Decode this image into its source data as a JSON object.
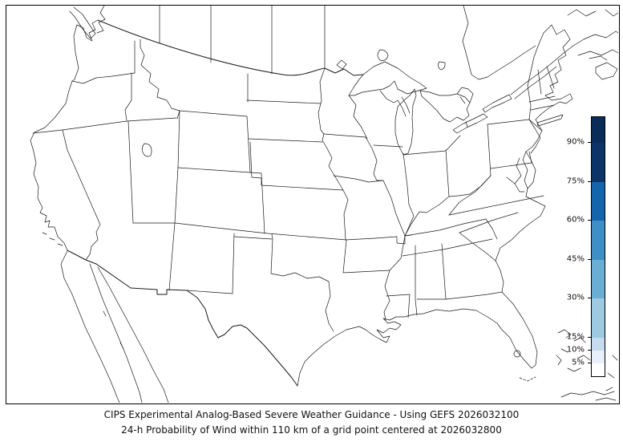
{
  "figure": {
    "background": "#ffffff",
    "frame_border_color": "#000000",
    "map_line_color": "#1a1a1a"
  },
  "map": {
    "region": "Contiguous United States with state boundaries, southern Canada, northern Mexico, Great Lakes and coastal islands",
    "fill": "#ffffff",
    "shaded_probability_areas": "none visible (all below 5%)"
  },
  "colorbar": {
    "orientation": "vertical",
    "unit": "%",
    "range": [
      0,
      100
    ],
    "ticks": [
      {
        "label": "90%",
        "value": 90
      },
      {
        "label": "75%",
        "value": 75
      },
      {
        "label": "60%",
        "value": 60
      },
      {
        "label": "45%",
        "value": 45
      },
      {
        "label": "30%",
        "value": 30
      },
      {
        "label": "15%",
        "value": 15
      },
      {
        "label": "10%",
        "value": 10
      },
      {
        "label": "5%",
        "value": 5
      }
    ],
    "segments": [
      {
        "from": 90,
        "to": 100,
        "color": "#0a2c59"
      },
      {
        "from": 75,
        "to": 90,
        "color": "#0d3468"
      },
      {
        "from": 60,
        "to": 75,
        "color": "#1565ac"
      },
      {
        "from": 45,
        "to": 60,
        "color": "#3f8ec5"
      },
      {
        "from": 30,
        "to": 45,
        "color": "#6aaed6"
      },
      {
        "from": 15,
        "to": 30,
        "color": "#9dc9e1"
      },
      {
        "from": 10,
        "to": 15,
        "color": "#c6dbef"
      },
      {
        "from": 5,
        "to": 10,
        "color": "#e8f1fa"
      },
      {
        "from": 0,
        "to": 5,
        "color": "#ffffff"
      }
    ]
  },
  "caption": {
    "line1": "CIPS Experimental Analog-Based Severe Weather Guidance - Using GEFS 2026032100",
    "line2": "24-h Probability of Wind within 110 km of a grid point centered at 2026032800"
  }
}
